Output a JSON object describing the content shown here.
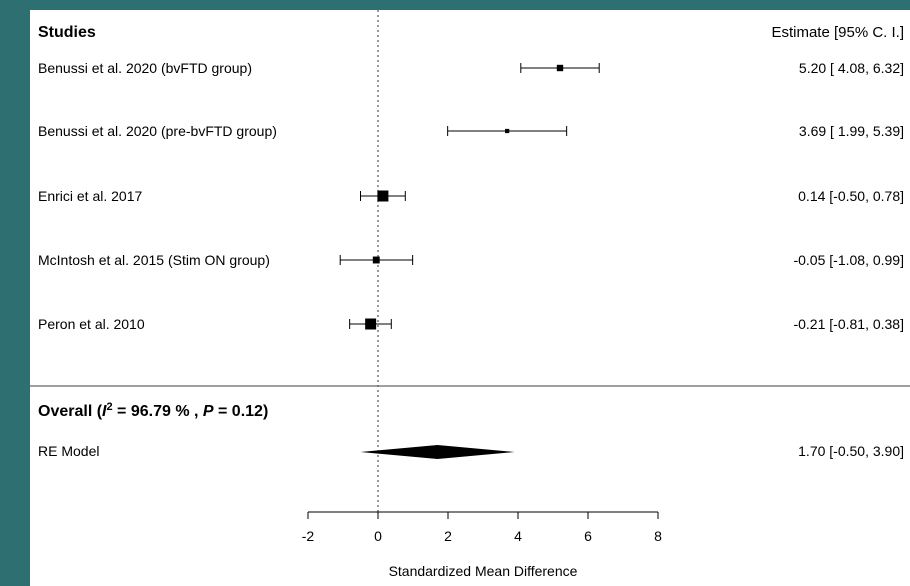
{
  "chart_data": {
    "type": "forest",
    "header": {
      "studies": "Studies",
      "estimate": "Estimate [95% C. I.]"
    },
    "studies": [
      {
        "label": "Benussi et al. 2020 (bvFTD group)",
        "estimate": 5.2,
        "ci_low": 4.08,
        "ci_high": 6.32,
        "text": "5.20 [ 4.08, 6.32]"
      },
      {
        "label": "Benussi et al. 2020 (pre-bvFTD group)",
        "estimate": 3.69,
        "ci_low": 1.99,
        "ci_high": 5.39,
        "text": "3.69 [ 1.99, 5.39]"
      },
      {
        "label": "Enrici et al. 2017",
        "estimate": 0.14,
        "ci_low": -0.5,
        "ci_high": 0.78,
        "text": "0.14 [-0.50, 0.78]"
      },
      {
        "label": "McIntosh et al. 2015 (Stim ON group)",
        "estimate": -0.05,
        "ci_low": -1.08,
        "ci_high": 0.99,
        "text": "-0.05 [-1.08, 0.99]"
      },
      {
        "label": "Peron et al. 2010",
        "estimate": -0.21,
        "ci_low": -0.81,
        "ci_high": 0.38,
        "text": "-0.21 [-0.81, 0.38]"
      }
    ],
    "overall": {
      "prefix": "Overall (",
      "i2_symbol": "I",
      "i2_sup": "2",
      "i2_rest": " = 96.79 % , ",
      "p_symbol": "P",
      "p_rest": " = 0.12)"
    },
    "model": {
      "label": "RE Model",
      "estimate": 1.7,
      "ci_low": -0.5,
      "ci_high": 3.9,
      "text": "1.70 [-0.50, 3.90]"
    },
    "xaxis": {
      "label": "Standardized Mean Difference",
      "ticks": [
        -2,
        0,
        2,
        4,
        6,
        8
      ],
      "range": [
        -2,
        8
      ]
    }
  }
}
